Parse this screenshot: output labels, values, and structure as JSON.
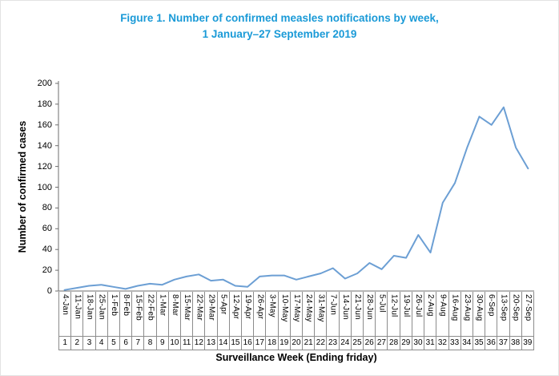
{
  "title": {
    "line1": "Figure 1. Number of confirmed measles notifications by week,",
    "line2": "1 January–27 September 2019"
  },
  "colors": {
    "title": "#1a9ad7",
    "line": "#6c9fd4",
    "axis": "#6e6e6e",
    "cell_border": "#8c8c8c",
    "text": "#000000"
  },
  "chart_data": {
    "type": "line",
    "title": "Figure 1. Number of confirmed measles notifications by week, 1 January–27 September 2019",
    "xlabel": "Surveillance Week (Ending friday)",
    "ylabel": "Number of confirmed cases",
    "ylim": [
      0,
      200
    ],
    "ytick_step": 20,
    "ytick_labels": [
      "0",
      "20",
      "40",
      "60",
      "80",
      "100",
      "120",
      "140",
      "160",
      "180",
      "200"
    ],
    "grid": false,
    "legend": false,
    "categories": [
      "4-Jan",
      "11-Jan",
      "18-Jan",
      "25-Jan",
      "1-Feb",
      "8-Feb",
      "15-Feb",
      "22-Feb",
      "1-Mar",
      "8-Mar",
      "15-Mar",
      "22-Mar",
      "29-Mar",
      "5-Apr",
      "12-Apr",
      "19-Apr",
      "26-Apr",
      "3-May",
      "10-May",
      "17-May",
      "24-May",
      "31-May",
      "7-Jun",
      "14-Jun",
      "21-Jun",
      "28-Jun",
      "5-Jul",
      "12-Jul",
      "19-Jul",
      "26-Jul",
      "2-Aug",
      "9-Aug",
      "16-Aug",
      "23-Aug",
      "30-Aug",
      "6-Sep",
      "13-Sep",
      "20-Sep",
      "27-Sep"
    ],
    "week_numbers": [
      "1",
      "2",
      "3",
      "4",
      "5",
      "6",
      "7",
      "8",
      "9",
      "10",
      "11",
      "12",
      "13",
      "14",
      "15",
      "16",
      "17",
      "18",
      "19",
      "20",
      "21",
      "22",
      "23",
      "24",
      "25",
      "26",
      "27",
      "28",
      "29",
      "30",
      "31",
      "32",
      "33",
      "34",
      "35",
      "36",
      "37",
      "38",
      "39"
    ],
    "values": [
      1,
      3,
      5,
      6,
      4,
      2,
      5,
      7,
      6,
      11,
      14,
      16,
      10,
      11,
      5,
      4,
      14,
      15,
      15,
      11,
      14,
      17,
      22,
      12,
      17,
      27,
      21,
      34,
      32,
      54,
      37,
      85,
      104,
      138,
      168,
      160,
      177,
      138,
      118
    ]
  }
}
